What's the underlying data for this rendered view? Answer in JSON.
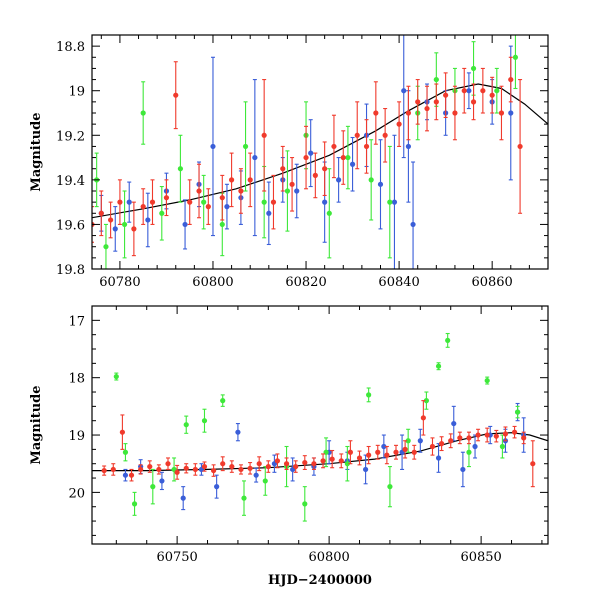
{
  "chart_data": [
    {
      "type": "scatter",
      "title": "",
      "xlabel": "",
      "ylabel": "Magnitude",
      "xlim": [
        60774,
        60872
      ],
      "ylim": [
        19.8,
        18.75
      ],
      "y_inverted": true,
      "xticks": [
        60780,
        60800,
        60820,
        60840,
        60860
      ],
      "yticks": [
        18.8,
        19,
        19.2,
        19.4,
        19.6,
        19.8
      ],
      "ytick_labels": [
        "18.8",
        "19",
        "19.2",
        "19.4",
        "19.6",
        "19.8"
      ],
      "grid": false,
      "legend": "none",
      "model_curve": {
        "x": [
          60774,
          60785,
          60795,
          60805,
          60815,
          60825,
          60835,
          60842,
          60850,
          60857,
          60862,
          60867,
          60872
        ],
        "y": [
          19.57,
          19.53,
          19.49,
          19.44,
          19.37,
          19.29,
          19.18,
          19.09,
          19.0,
          18.97,
          18.99,
          19.06,
          19.15
        ]
      },
      "series": [
        {
          "color": "#3a5ed8",
          "x": [
            60776,
            60779,
            60782,
            60786,
            60790,
            60794,
            60797,
            60800,
            60803,
            60806,
            60809,
            60812,
            60815,
            60818,
            60821,
            60824,
            60827,
            60830,
            60833,
            60836,
            60839,
            60841,
            60842,
            60843,
            60846,
            60850,
            60855,
            60860,
            60864
          ],
          "y": [
            19.55,
            19.62,
            19.5,
            19.58,
            19.45,
            19.6,
            19.42,
            19.25,
            19.52,
            19.48,
            19.3,
            19.55,
            19.4,
            19.45,
            19.28,
            19.5,
            19.4,
            19.33,
            19.2,
            19.42,
            19.5,
            19.0,
            19.25,
            19.6,
            19.05,
            19.1,
            19.0,
            19.05,
            19.1
          ],
          "err": [
            0.08,
            0.1,
            0.09,
            0.12,
            0.08,
            0.11,
            0.1,
            0.4,
            0.1,
            0.12,
            0.35,
            0.14,
            0.1,
            0.12,
            0.15,
            0.18,
            0.1,
            0.12,
            0.14,
            0.2,
            0.3,
            0.3,
            0.25,
            0.28,
            0.08,
            0.1,
            0.08,
            0.1,
            0.3
          ]
        },
        {
          "color": "#3ee83a",
          "x": [
            60775,
            60777,
            60781,
            60785,
            60789,
            60793,
            60798,
            60802,
            60807,
            60811,
            60816,
            60820,
            60825,
            60829,
            60834,
            60838,
            60844,
            60848,
            60852,
            60856,
            60861,
            60865
          ],
          "y": [
            19.4,
            19.7,
            19.6,
            19.1,
            19.55,
            19.35,
            19.5,
            19.6,
            19.25,
            19.5,
            19.45,
            19.2,
            19.55,
            19.3,
            19.4,
            19.5,
            19.1,
            18.95,
            19.0,
            18.9,
            19.0,
            18.85
          ],
          "err": [
            0.12,
            0.1,
            0.15,
            0.14,
            0.12,
            0.15,
            0.12,
            0.14,
            0.2,
            0.16,
            0.18,
            0.15,
            0.2,
            0.14,
            0.18,
            0.25,
            0.12,
            0.12,
            0.1,
            0.12,
            0.1,
            0.14
          ]
        },
        {
          "color": "#f03a2c",
          "x": [
            60774,
            60776,
            60778,
            60780,
            60783,
            60785,
            60787,
            60790,
            60792,
            60795,
            60797,
            60799,
            60802,
            60804,
            60806,
            60808,
            60811,
            60813,
            60815,
            60817,
            60820,
            60822,
            60824,
            60826,
            60828,
            60831,
            60833,
            60835,
            60837,
            60840,
            60842,
            60844,
            60846,
            60848,
            60850,
            60852,
            60854,
            60856,
            60858,
            60860,
            60862,
            60864,
            60866
          ],
          "y": [
            19.6,
            19.55,
            19.58,
            19.5,
            19.62,
            19.52,
            19.5,
            19.48,
            19.02,
            19.5,
            19.45,
            19.52,
            19.48,
            19.4,
            19.45,
            19.4,
            19.2,
            19.5,
            19.35,
            19.42,
            19.3,
            19.38,
            19.35,
            19.25,
            19.3,
            19.2,
            19.25,
            19.1,
            19.2,
            19.15,
            19.1,
            19.05,
            19.08,
            19.05,
            19.02,
            19.1,
            19.0,
            19.05,
            19.0,
            19.02,
            19.1,
            18.95,
            19.25
          ],
          "err": [
            0.08,
            0.1,
            0.08,
            0.1,
            0.12,
            0.08,
            0.1,
            0.08,
            0.15,
            0.1,
            0.12,
            0.08,
            0.1,
            0.12,
            0.1,
            0.12,
            0.25,
            0.12,
            0.1,
            0.12,
            0.14,
            0.1,
            0.12,
            0.14,
            0.12,
            0.15,
            0.12,
            0.14,
            0.12,
            0.1,
            0.12,
            0.1,
            0.1,
            0.08,
            0.1,
            0.12,
            0.1,
            0.08,
            0.1,
            0.08,
            0.12,
            0.1,
            0.3
          ]
        }
      ]
    },
    {
      "type": "scatter",
      "title": "",
      "xlabel": "HJD−2400000",
      "ylabel": "Magnitude",
      "xlim": [
        60722,
        60872
      ],
      "ylim": [
        20.9,
        16.75
      ],
      "y_inverted": true,
      "xticks": [
        60750,
        60800,
        60850
      ],
      "yticks": [
        17,
        18,
        19,
        20
      ],
      "ytick_labels": [
        "17",
        "18",
        "19",
        "20"
      ],
      "grid": false,
      "legend": "none",
      "model_curve": {
        "x": [
          60722,
          60740,
          60760,
          60780,
          60800,
          60815,
          60830,
          60842,
          60852,
          60860,
          60866,
          60872
        ],
        "y": [
          19.62,
          19.62,
          19.6,
          19.57,
          19.5,
          19.42,
          19.28,
          19.1,
          18.98,
          18.96,
          19.0,
          19.1
        ]
      },
      "series": [
        {
          "color": "#3a5ed8",
          "x": [
            60733,
            60738,
            60745,
            60752,
            60758,
            60763,
            60770,
            60776,
            60782,
            60788,
            60795,
            60800,
            60806,
            60812,
            60818,
            60824,
            60830,
            60836,
            60841,
            60844,
            60848,
            60853,
            60858,
            60862,
            60864
          ],
          "y": [
            19.7,
            19.55,
            19.8,
            20.1,
            19.6,
            19.9,
            18.95,
            19.7,
            19.5,
            19.6,
            19.55,
            19.3,
            19.45,
            19.6,
            19.2,
            19.3,
            19.1,
            19.4,
            18.8,
            19.6,
            19.2,
            19.0,
            19.1,
            18.6,
            19.0
          ],
          "err": [
            0.1,
            0.12,
            0.15,
            0.2,
            0.1,
            0.2,
            0.15,
            0.12,
            0.15,
            0.2,
            0.15,
            0.2,
            0.15,
            0.25,
            0.2,
            0.3,
            0.2,
            0.25,
            0.3,
            0.3,
            0.2,
            0.15,
            0.2,
            0.15,
            0.3
          ]
        },
        {
          "color": "#3ee83a",
          "x": [
            60730,
            60733,
            60736,
            60742,
            60749,
            60753,
            60759,
            60765,
            60772,
            60779,
            60786,
            60792,
            60799,
            60806,
            60813,
            60820,
            60826,
            60832,
            60836,
            60839,
            60846,
            60852,
            60857,
            60862
          ],
          "y": [
            17.98,
            19.3,
            20.2,
            19.9,
            19.6,
            18.82,
            18.75,
            18.4,
            20.1,
            19.8,
            19.55,
            20.2,
            19.3,
            19.5,
            18.3,
            19.9,
            19.1,
            18.4,
            17.8,
            17.35,
            19.3,
            18.05,
            19.2,
            18.6
          ],
          "err": [
            0.06,
            0.15,
            0.2,
            0.3,
            0.2,
            0.15,
            0.2,
            0.1,
            0.3,
            0.25,
            0.35,
            0.3,
            0.25,
            0.3,
            0.12,
            0.35,
            0.2,
            0.15,
            0.06,
            0.12,
            0.25,
            0.06,
            0.2,
            0.1
          ]
        },
        {
          "color": "#f03a2c",
          "x": [
            60726,
            60729,
            60732,
            60735,
            60738,
            60741,
            60744,
            60747,
            60750,
            60753,
            60756,
            60759,
            60762,
            60765,
            60768,
            60771,
            60774,
            60777,
            60780,
            60783,
            60786,
            60789,
            60792,
            60795,
            60798,
            60801,
            60804,
            60807,
            60810,
            60813,
            60816,
            60819,
            60822,
            60825,
            60828,
            60831,
            60834,
            60837,
            60840,
            60843,
            60846,
            60849,
            60852,
            60855,
            60858,
            60861,
            60864,
            60867
          ],
          "y": [
            19.62,
            19.6,
            18.95,
            19.7,
            19.6,
            19.55,
            19.6,
            19.5,
            19.65,
            19.58,
            19.6,
            19.55,
            19.62,
            19.5,
            19.55,
            19.6,
            19.58,
            19.5,
            19.55,
            19.45,
            19.5,
            19.55,
            19.48,
            19.5,
            19.45,
            19.42,
            19.45,
            19.3,
            19.4,
            19.35,
            19.3,
            19.35,
            19.3,
            19.25,
            19.3,
            18.7,
            19.2,
            19.15,
            19.1,
            19.05,
            19.05,
            19.0,
            19.0,
            19.02,
            18.98,
            18.95,
            19.05,
            19.5
          ],
          "err": [
            0.08,
            0.1,
            0.3,
            0.1,
            0.08,
            0.1,
            0.08,
            0.1,
            0.12,
            0.08,
            0.1,
            0.08,
            0.1,
            0.12,
            0.1,
            0.08,
            0.1,
            0.12,
            0.1,
            0.12,
            0.1,
            0.1,
            0.12,
            0.1,
            0.12,
            0.15,
            0.12,
            0.2,
            0.12,
            0.15,
            0.12,
            0.15,
            0.12,
            0.15,
            0.12,
            0.3,
            0.15,
            0.12,
            0.12,
            0.1,
            0.1,
            0.1,
            0.12,
            0.1,
            0.12,
            0.1,
            0.1,
            0.4
          ]
        }
      ]
    }
  ]
}
